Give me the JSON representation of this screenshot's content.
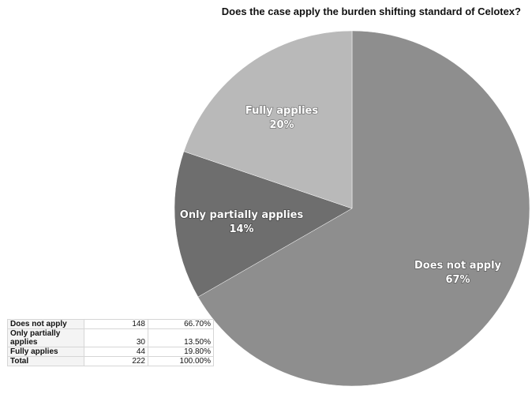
{
  "chart_data": {
    "type": "pie",
    "title": "Does the case apply the burden shifting standard of Celotex?",
    "slices": [
      {
        "label": "Does not apply",
        "value": 66.7,
        "display": "67%",
        "color": "#8e8e8e"
      },
      {
        "label": "Only partially applies",
        "value": 13.5,
        "display": "14%",
        "color": "#6e6e6e"
      },
      {
        "label": "Fully applies",
        "value": 19.8,
        "display": "20%",
        "color": "#b9b9b9"
      }
    ]
  },
  "table": {
    "rows": [
      {
        "label": "Does not apply",
        "count": "148",
        "percent": "66.70%"
      },
      {
        "label": "Only partially applies",
        "count": "30",
        "percent": "13.50%"
      },
      {
        "label": "Fully applies",
        "count": "44",
        "percent": "19.80%"
      },
      {
        "label": "Total",
        "count": "222",
        "percent": "100.00%"
      }
    ]
  }
}
